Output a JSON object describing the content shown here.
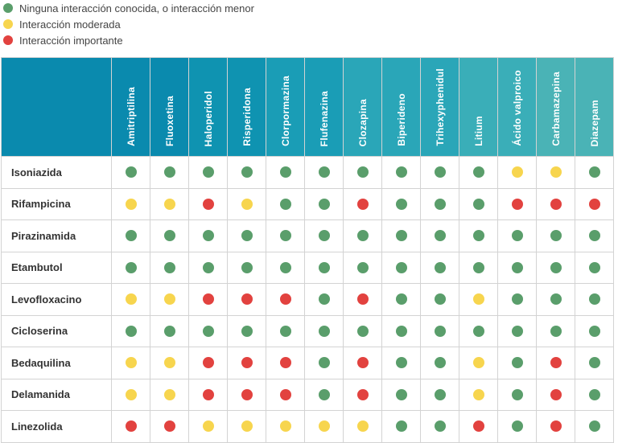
{
  "colors": {
    "green": "#5a9e6b",
    "yellow": "#f7d54e",
    "red": "#e2423f",
    "header_gradient": [
      "#0a8aae",
      "#0f93b1",
      "#1a9db6",
      "#2aa6b8",
      "#3aaeb8",
      "#4ab3b6"
    ]
  },
  "legend": [
    {
      "level": "green",
      "label": "Ninguna interacción conocida, o interacción menor"
    },
    {
      "level": "yellow",
      "label": "Interacción moderada"
    },
    {
      "level": "red",
      "label": "Interacción importante"
    }
  ],
  "table": {
    "columns": [
      "Amitriptilina",
      "Fluoxetina",
      "Haloperidol",
      "Risperidona",
      "Clorpormazina",
      "Flufenazina",
      "Clozapina",
      "Biperideno",
      "Trihexyphenidul",
      "Litium",
      "Ácido valproico",
      "Carbamazepina",
      "Diazepam"
    ],
    "rows": [
      {
        "label": "Isoniazida",
        "values": [
          "green",
          "green",
          "green",
          "green",
          "green",
          "green",
          "green",
          "green",
          "green",
          "green",
          "yellow",
          "yellow",
          "green"
        ]
      },
      {
        "label": "Rifampicina",
        "values": [
          "yellow",
          "yellow",
          "red",
          "yellow",
          "green",
          "green",
          "red",
          "green",
          "green",
          "green",
          "red",
          "red",
          "red"
        ]
      },
      {
        "label": "Pirazinamida",
        "values": [
          "green",
          "green",
          "green",
          "green",
          "green",
          "green",
          "green",
          "green",
          "green",
          "green",
          "green",
          "green",
          "green"
        ]
      },
      {
        "label": "Etambutol",
        "values": [
          "green",
          "green",
          "green",
          "green",
          "green",
          "green",
          "green",
          "green",
          "green",
          "green",
          "green",
          "green",
          "green"
        ]
      },
      {
        "label": "Levofloxacino",
        "values": [
          "yellow",
          "yellow",
          "red",
          "red",
          "red",
          "green",
          "red",
          "green",
          "green",
          "yellow",
          "green",
          "green",
          "green"
        ]
      },
      {
        "label": "Cicloserina",
        "values": [
          "green",
          "green",
          "green",
          "green",
          "green",
          "green",
          "green",
          "green",
          "green",
          "green",
          "green",
          "green",
          "green"
        ]
      },
      {
        "label": "Bedaquilina",
        "values": [
          "yellow",
          "yellow",
          "red",
          "red",
          "red",
          "green",
          "red",
          "green",
          "green",
          "yellow",
          "green",
          "red",
          "green"
        ]
      },
      {
        "label": "Delamanida",
        "values": [
          "yellow",
          "yellow",
          "red",
          "red",
          "red",
          "green",
          "red",
          "green",
          "green",
          "yellow",
          "green",
          "red",
          "green"
        ]
      },
      {
        "label": "Linezolida",
        "values": [
          "red",
          "red",
          "yellow",
          "yellow",
          "yellow",
          "yellow",
          "yellow",
          "green",
          "green",
          "red",
          "green",
          "red",
          "green"
        ]
      }
    ]
  }
}
